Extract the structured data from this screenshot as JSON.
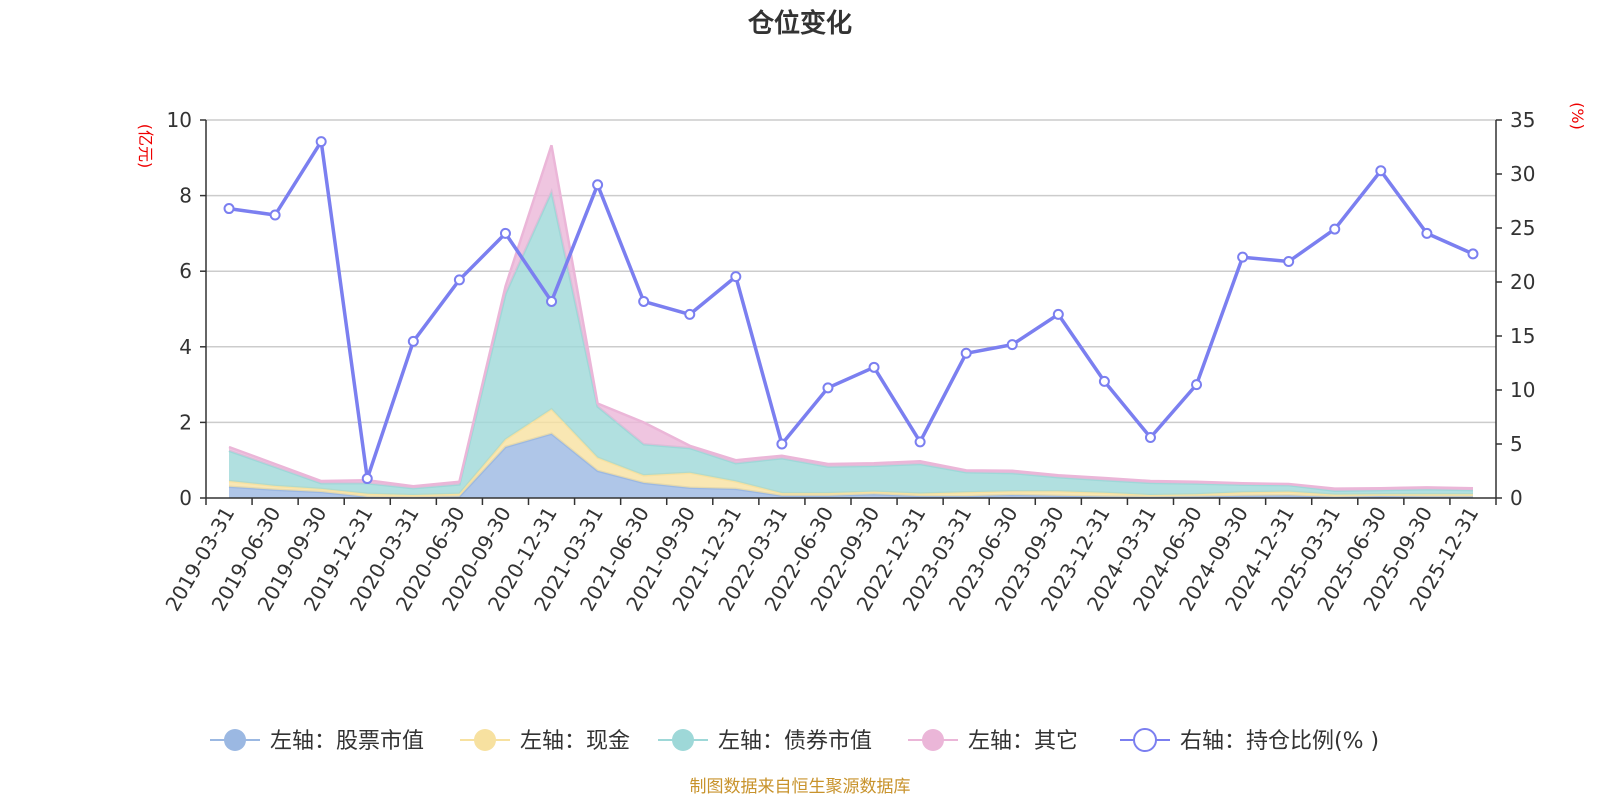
{
  "chart_data": {
    "type": "area",
    "title": "仓位变化",
    "left_axis_unit": "(亿元)",
    "right_axis_unit": "(%)",
    "categories": [
      "2019-03-31",
      "2019-06-30",
      "2019-09-30",
      "2019-12-31",
      "2020-03-31",
      "2020-06-30",
      "2020-09-30",
      "2020-12-31",
      "2021-03-31",
      "2021-06-30",
      "2021-09-30",
      "2021-12-31",
      "2022-03-31",
      "2022-06-30",
      "2022-09-30",
      "2022-12-31",
      "2023-03-31",
      "2023-06-30",
      "2023-09-30",
      "2023-12-31",
      "2024-03-31",
      "2024-06-30",
      "2024-09-30",
      "2024-12-31",
      "2025-03-31",
      "2025-06-30",
      "2025-09-30",
      "2025-12-31"
    ],
    "left_ylim": [
      0,
      10
    ],
    "left_ticks": [
      0,
      2,
      4,
      6,
      8,
      10
    ],
    "right_ylim": [
      0,
      35
    ],
    "right_ticks": [
      0,
      5,
      10,
      15,
      20,
      25,
      30,
      35
    ],
    "stacked_series": [
      {
        "name": "左轴：股票市值",
        "color": "#9bb8e2",
        "values": [
          0.3,
          0.22,
          0.16,
          0.03,
          0.02,
          0.04,
          1.35,
          1.7,
          0.72,
          0.4,
          0.27,
          0.24,
          0.06,
          0.06,
          0.1,
          0.05,
          0.05,
          0.08,
          0.06,
          0.04,
          0.03,
          0.04,
          0.06,
          0.07,
          0.03,
          0.05,
          0.04,
          0.04
        ]
      },
      {
        "name": "左轴：现金",
        "color": "#f7e1a0",
        "values": [
          0.15,
          0.1,
          0.08,
          0.08,
          0.06,
          0.07,
          0.2,
          0.65,
          0.35,
          0.2,
          0.4,
          0.2,
          0.07,
          0.07,
          0.07,
          0.07,
          0.1,
          0.1,
          0.12,
          0.1,
          0.05,
          0.06,
          0.09,
          0.1,
          0.06,
          0.05,
          0.06,
          0.06
        ]
      },
      {
        "name": "左轴：债券市值",
        "color": "#9ed8d8",
        "values": [
          0.8,
          0.5,
          0.15,
          0.28,
          0.18,
          0.25,
          3.85,
          5.75,
          1.35,
          0.82,
          0.65,
          0.48,
          0.92,
          0.7,
          0.68,
          0.78,
          0.53,
          0.48,
          0.37,
          0.33,
          0.32,
          0.28,
          0.2,
          0.17,
          0.1,
          0.11,
          0.13,
          0.11
        ]
      },
      {
        "name": "左轴：其它",
        "color": "#ebb6d8",
        "values": [
          0.1,
          0.08,
          0.06,
          0.08,
          0.05,
          0.07,
          0.2,
          1.23,
          0.08,
          0.58,
          0.06,
          0.08,
          0.07,
          0.07,
          0.07,
          0.07,
          0.05,
          0.06,
          0.05,
          0.06,
          0.05,
          0.05,
          0.04,
          0.03,
          0.06,
          0.05,
          0.05,
          0.05
        ]
      }
    ],
    "line_series": {
      "name": "右轴：持仓比例(%)",
      "legend_label": "右轴：持仓比例(% )",
      "color": "#7b7ff0",
      "values": [
        26.8,
        26.2,
        33.0,
        1.8,
        14.5,
        20.2,
        24.5,
        18.2,
        29.0,
        18.2,
        17.0,
        20.5,
        5.0,
        10.2,
        12.1,
        5.2,
        13.4,
        14.2,
        17.0,
        10.8,
        5.6,
        10.5,
        22.3,
        21.9,
        24.9,
        30.3,
        24.5,
        22.6
      ]
    },
    "legend": [
      "左轴：股票市值",
      "左轴：现金",
      "左轴：债券市值",
      "左轴：其它",
      "右轴：持仓比例(% )"
    ],
    "legend_position": "bottom",
    "source_text": "制图数据来自恒生聚源数据库"
  }
}
